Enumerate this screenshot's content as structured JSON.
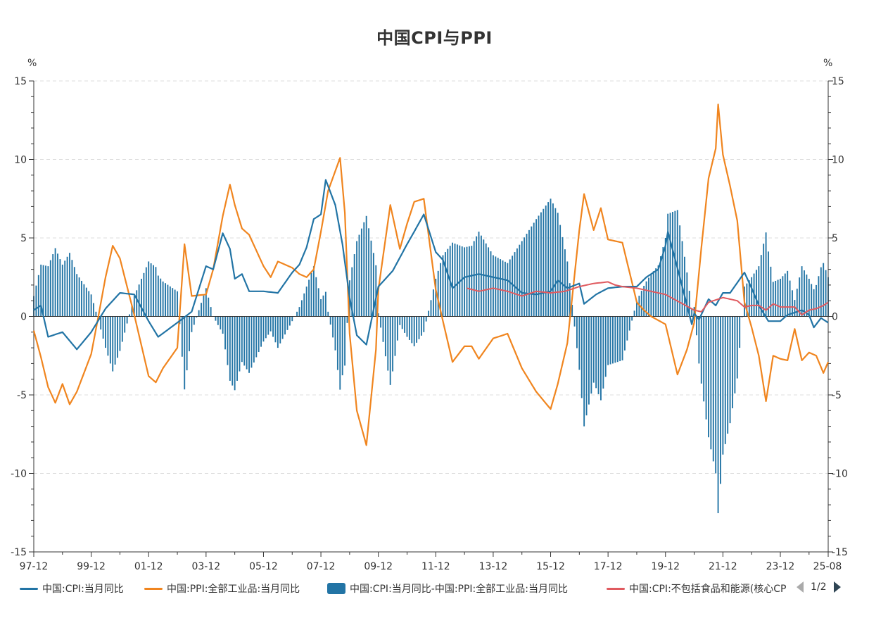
{
  "title": "中国CPI与PPI",
  "unit_left": "%",
  "unit_right": "%",
  "legend": {
    "items": [
      {
        "label": "中国:CPI:当月同比",
        "color": "#2274a5",
        "kind": "line"
      },
      {
        "label": "中国:PPI:全部工业品:当月同比",
        "color": "#f0851f",
        "kind": "line"
      },
      {
        "label": "中国:CPI:当月同比-中国:PPI:全部工业品:当月同比",
        "color": "#2274a5",
        "kind": "box"
      },
      {
        "label": "中国:CPI:不包括食品和能源(核心CPI):当月同比",
        "color": "#e05a5f",
        "kind": "line"
      }
    ],
    "page": "1/2"
  },
  "chart_data": {
    "type": "line+bar",
    "title": "中国CPI与PPI",
    "ylabel_left": "%",
    "ylabel_right": "%",
    "ylim": [
      -15,
      15
    ],
    "yticks": [
      15,
      10,
      5,
      0,
      -5,
      -10,
      -15
    ],
    "x_start": "1997-12",
    "x_end": "2025-08",
    "xtick_labels": [
      "97-12",
      "99-12",
      "01-12",
      "03-12",
      "05-12",
      "07-12",
      "09-12",
      "11-12",
      "13-12",
      "15-12",
      "17-12",
      "19-12",
      "21-12",
      "23-12",
      "25-08"
    ],
    "series_anchors": {
      "cpi": [
        [
          "1997-12",
          0.4
        ],
        [
          "1998-03",
          0.7
        ],
        [
          "1998-06",
          -1.3
        ],
        [
          "1998-12",
          -1.0
        ],
        [
          "1999-06",
          -2.1
        ],
        [
          "1999-12",
          -1.0
        ],
        [
          "2000-06",
          0.5
        ],
        [
          "2000-12",
          1.5
        ],
        [
          "2001-06",
          1.4
        ],
        [
          "2001-12",
          -0.3
        ],
        [
          "2002-04",
          -1.3
        ],
        [
          "2002-12",
          -0.4
        ],
        [
          "2003-06",
          0.3
        ],
        [
          "2003-12",
          3.2
        ],
        [
          "2004-03",
          3.0
        ],
        [
          "2004-07",
          5.3
        ],
        [
          "2004-10",
          4.3
        ],
        [
          "2004-12",
          2.4
        ],
        [
          "2005-03",
          2.7
        ],
        [
          "2005-06",
          1.6
        ],
        [
          "2005-12",
          1.6
        ],
        [
          "2006-06",
          1.5
        ],
        [
          "2006-12",
          2.8
        ],
        [
          "2007-03",
          3.3
        ],
        [
          "2007-06",
          4.4
        ],
        [
          "2007-09",
          6.2
        ],
        [
          "2007-12",
          6.5
        ],
        [
          "2008-02",
          8.7
        ],
        [
          "2008-06",
          7.1
        ],
        [
          "2008-09",
          4.6
        ],
        [
          "2008-12",
          1.2
        ],
        [
          "2009-03",
          -1.2
        ],
        [
          "2009-07",
          -1.8
        ],
        [
          "2009-12",
          1.9
        ],
        [
          "2010-06",
          2.9
        ],
        [
          "2010-12",
          4.6
        ],
        [
          "2011-03",
          5.4
        ],
        [
          "2011-07",
          6.5
        ],
        [
          "2011-12",
          4.1
        ],
        [
          "2012-03",
          3.6
        ],
        [
          "2012-07",
          1.8
        ],
        [
          "2012-12",
          2.5
        ],
        [
          "2013-06",
          2.7
        ],
        [
          "2013-12",
          2.5
        ],
        [
          "2014-06",
          2.3
        ],
        [
          "2014-12",
          1.5
        ],
        [
          "2015-06",
          1.4
        ],
        [
          "2015-12",
          1.6
        ],
        [
          "2016-03",
          2.3
        ],
        [
          "2016-07",
          1.8
        ],
        [
          "2016-12",
          2.1
        ],
        [
          "2017-02",
          0.8
        ],
        [
          "2017-07",
          1.4
        ],
        [
          "2017-12",
          1.8
        ],
        [
          "2018-06",
          1.9
        ],
        [
          "2018-12",
          1.9
        ],
        [
          "2019-04",
          2.5
        ],
        [
          "2019-09",
          3.0
        ],
        [
          "2019-12",
          4.5
        ],
        [
          "2020-01",
          5.4
        ],
        [
          "2020-06",
          2.5
        ],
        [
          "2020-11",
          -0.5
        ],
        [
          "2020-12",
          0.2
        ],
        [
          "2021-02",
          -0.2
        ],
        [
          "2021-06",
          1.1
        ],
        [
          "2021-09",
          0.7
        ],
        [
          "2021-12",
          1.5
        ],
        [
          "2022-03",
          1.5
        ],
        [
          "2022-09",
          2.8
        ],
        [
          "2022-12",
          1.8
        ],
        [
          "2023-03",
          0.7
        ],
        [
          "2023-07",
          -0.3
        ],
        [
          "2023-12",
          -0.3
        ],
        [
          "2024-03",
          0.1
        ],
        [
          "2024-09",
          0.4
        ],
        [
          "2024-12",
          0.1
        ],
        [
          "2025-02",
          -0.7
        ],
        [
          "2025-05",
          -0.1
        ],
        [
          "2025-08",
          -0.4
        ]
      ],
      "ppi": [
        [
          "1997-12",
          -0.9
        ],
        [
          "1998-03",
          -2.6
        ],
        [
          "1998-06",
          -4.5
        ],
        [
          "1998-09",
          -5.5
        ],
        [
          "1998-12",
          -4.3
        ],
        [
          "1999-03",
          -5.6
        ],
        [
          "1999-06",
          -4.8
        ],
        [
          "1999-12",
          -2.4
        ],
        [
          "2000-03",
          0.0
        ],
        [
          "2000-06",
          2.5
        ],
        [
          "2000-09",
          4.5
        ],
        [
          "2000-12",
          3.7
        ],
        [
          "2001-06",
          0.1
        ],
        [
          "2001-12",
          -3.8
        ],
        [
          "2002-03",
          -4.2
        ],
        [
          "2002-06",
          -3.3
        ],
        [
          "2002-12",
          -2.0
        ],
        [
          "2003-03",
          4.6
        ],
        [
          "2003-06",
          1.3
        ],
        [
          "2003-12",
          1.4
        ],
        [
          "2004-03",
          3.0
        ],
        [
          "2004-07",
          6.4
        ],
        [
          "2004-10",
          8.4
        ],
        [
          "2004-12",
          7.1
        ],
        [
          "2005-03",
          5.6
        ],
        [
          "2005-06",
          5.2
        ],
        [
          "2005-12",
          3.2
        ],
        [
          "2006-03",
          2.5
        ],
        [
          "2006-06",
          3.5
        ],
        [
          "2006-12",
          3.1
        ],
        [
          "2007-03",
          2.7
        ],
        [
          "2007-06",
          2.5
        ],
        [
          "2007-09",
          3.0
        ],
        [
          "2007-12",
          5.4
        ],
        [
          "2008-03",
          8.0
        ],
        [
          "2008-08",
          10.1
        ],
        [
          "2008-10",
          6.6
        ],
        [
          "2008-12",
          -1.1
        ],
        [
          "2009-03",
          -6.0
        ],
        [
          "2009-07",
          -8.2
        ],
        [
          "2009-11",
          -2.1
        ],
        [
          "2009-12",
          1.7
        ],
        [
          "2010-05",
          7.1
        ],
        [
          "2010-09",
          4.3
        ],
        [
          "2010-12",
          5.9
        ],
        [
          "2011-03",
          7.3
        ],
        [
          "2011-07",
          7.5
        ],
        [
          "2011-12",
          1.7
        ],
        [
          "2012-03",
          -0.3
        ],
        [
          "2012-07",
          -2.9
        ],
        [
          "2012-12",
          -1.9
        ],
        [
          "2013-03",
          -1.9
        ],
        [
          "2013-06",
          -2.7
        ],
        [
          "2013-12",
          -1.4
        ],
        [
          "2014-06",
          -1.1
        ],
        [
          "2014-12",
          -3.3
        ],
        [
          "2015-06",
          -4.8
        ],
        [
          "2015-12",
          -5.9
        ],
        [
          "2016-03",
          -4.3
        ],
        [
          "2016-07",
          -1.7
        ],
        [
          "2016-12",
          5.5
        ],
        [
          "2017-02",
          7.8
        ],
        [
          "2017-06",
          5.5
        ],
        [
          "2017-09",
          6.9
        ],
        [
          "2017-12",
          4.9
        ],
        [
          "2018-06",
          4.7
        ],
        [
          "2018-12",
          0.9
        ],
        [
          "2019-03",
          0.4
        ],
        [
          "2019-06",
          0.0
        ],
        [
          "2019-12",
          -0.5
        ],
        [
          "2020-05",
          -3.7
        ],
        [
          "2020-09",
          -2.1
        ],
        [
          "2020-12",
          -0.4
        ],
        [
          "2021-03",
          4.4
        ],
        [
          "2021-06",
          8.8
        ],
        [
          "2021-09",
          10.7
        ],
        [
          "2021-10",
          13.5
        ],
        [
          "2021-12",
          10.3
        ],
        [
          "2022-03",
          8.3
        ],
        [
          "2022-06",
          6.1
        ],
        [
          "2022-09",
          0.9
        ],
        [
          "2022-12",
          -0.7
        ],
        [
          "2023-03",
          -2.5
        ],
        [
          "2023-06",
          -5.4
        ],
        [
          "2023-09",
          -2.5
        ],
        [
          "2023-12",
          -2.7
        ],
        [
          "2024-03",
          -2.8
        ],
        [
          "2024-06",
          -0.8
        ],
        [
          "2024-09",
          -2.8
        ],
        [
          "2024-12",
          -2.3
        ],
        [
          "2025-03",
          -2.5
        ],
        [
          "2025-06",
          -3.6
        ],
        [
          "2025-08",
          -2.9
        ]
      ],
      "core_cpi": [
        [
          "2013-01",
          1.8
        ],
        [
          "2013-06",
          1.6
        ],
        [
          "2013-12",
          1.8
        ],
        [
          "2014-06",
          1.6
        ],
        [
          "2014-12",
          1.3
        ],
        [
          "2015-06",
          1.6
        ],
        [
          "2015-12",
          1.5
        ],
        [
          "2016-06",
          1.6
        ],
        [
          "2016-12",
          1.9
        ],
        [
          "2017-06",
          2.1
        ],
        [
          "2017-12",
          2.2
        ],
        [
          "2018-03",
          2.0
        ],
        [
          "2018-06",
          1.9
        ],
        [
          "2018-12",
          1.8
        ],
        [
          "2019-06",
          1.6
        ],
        [
          "2019-12",
          1.4
        ],
        [
          "2020-06",
          0.9
        ],
        [
          "2020-12",
          0.4
        ],
        [
          "2021-03",
          0.3
        ],
        [
          "2021-06",
          0.9
        ],
        [
          "2021-12",
          1.2
        ],
        [
          "2022-06",
          1.0
        ],
        [
          "2022-09",
          0.6
        ],
        [
          "2022-12",
          0.7
        ],
        [
          "2023-03",
          0.7
        ],
        [
          "2023-06",
          0.4
        ],
        [
          "2023-09",
          0.8
        ],
        [
          "2023-12",
          0.6
        ],
        [
          "2024-03",
          0.6
        ],
        [
          "2024-06",
          0.6
        ],
        [
          "2024-09",
          0.1
        ],
        [
          "2024-12",
          0.4
        ],
        [
          "2025-03",
          0.5
        ],
        [
          "2025-06",
          0.7
        ],
        [
          "2025-08",
          0.9
        ]
      ]
    },
    "bar_series": "cpi - ppi (monthly difference)"
  }
}
